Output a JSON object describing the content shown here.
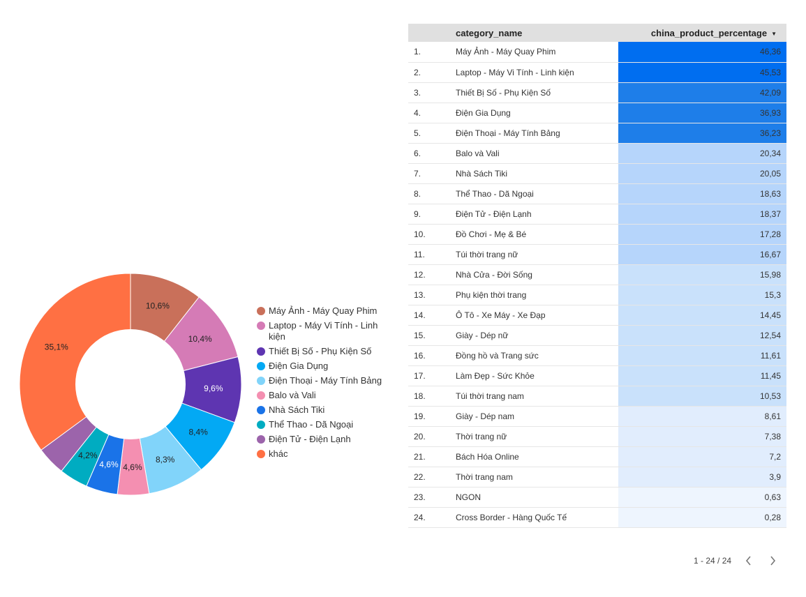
{
  "chart_data": [
    {
      "type": "pie",
      "donut": true,
      "legend_position": "right",
      "slices": [
        {
          "name": "Máy Ảnh - Máy Quay Phim",
          "value": 10.6,
          "label": "10,6%",
          "color": "#c9705a"
        },
        {
          "name": "Laptop - Máy Vi Tính - Linh kiện",
          "value": 10.4,
          "label": "10,4%",
          "color": "#d57bb6"
        },
        {
          "name": "Thiết Bị Số - Phụ Kiện Số",
          "value": 9.6,
          "label": "9,6%",
          "color": "#5e35b1"
        },
        {
          "name": "Điện Gia Dụng",
          "value": 8.4,
          "label": "8,4%",
          "color": "#03a9f4"
        },
        {
          "name": "Điện Thoại - Máy Tính Bảng",
          "value": 8.3,
          "label": "8,3%",
          "color": "#81d4fa"
        },
        {
          "name": "Balo và Vali",
          "value": 4.6,
          "label": "4,6%",
          "color": "#f48fb1"
        },
        {
          "name": "Nhà Sách Tiki",
          "value": 4.6,
          "label": "4,6%",
          "color": "#1a73e8"
        },
        {
          "name": "Thể Thao - Dã Ngoại",
          "value": 4.2,
          "label": "4,2%",
          "color": "#00acc1"
        },
        {
          "name": "Điện Tử - Điện Lạnh",
          "value": 4.2,
          "label": "",
          "color": "#9c64ab"
        },
        {
          "name": "khác",
          "value": 35.1,
          "label": "35,1%",
          "color": "#ff7043"
        }
      ]
    },
    {
      "type": "table",
      "columns": [
        "category_name",
        "china_product_percentage"
      ],
      "sort_column": "china_product_percentage",
      "sort_direction": "descending",
      "rows": [
        {
          "index": "1.",
          "name": "Máy Ảnh - Máy Quay Phim",
          "value": 46.36,
          "display": "46,36"
        },
        {
          "index": "2.",
          "name": "Laptop - Máy Vi Tính - Linh kiện",
          "value": 45.53,
          "display": "45,53"
        },
        {
          "index": "3.",
          "name": "Thiết Bị Số - Phụ Kiện Số",
          "value": 42.09,
          "display": "42,09"
        },
        {
          "index": "4.",
          "name": "Điện Gia Dụng",
          "value": 36.93,
          "display": "36,93"
        },
        {
          "index": "5.",
          "name": "Điện Thoại - Máy Tính Bảng",
          "value": 36.23,
          "display": "36,23"
        },
        {
          "index": "6.",
          "name": "Balo và Vali",
          "value": 20.34,
          "display": "20,34"
        },
        {
          "index": "7.",
          "name": "Nhà Sách Tiki",
          "value": 20.05,
          "display": "20,05"
        },
        {
          "index": "8.",
          "name": "Thể Thao - Dã Ngoại",
          "value": 18.63,
          "display": "18,63"
        },
        {
          "index": "9.",
          "name": "Điện Tử - Điện Lạnh",
          "value": 18.37,
          "display": "18,37"
        },
        {
          "index": "10.",
          "name": "Đồ Chơi - Mẹ & Bé",
          "value": 17.28,
          "display": "17,28"
        },
        {
          "index": "11.",
          "name": "Túi thời trang nữ",
          "value": 16.67,
          "display": "16,67"
        },
        {
          "index": "12.",
          "name": "Nhà Cửa - Đời Sống",
          "value": 15.98,
          "display": "15,98"
        },
        {
          "index": "13.",
          "name": "Phụ kiện thời trang",
          "value": 15.3,
          "display": "15,3"
        },
        {
          "index": "14.",
          "name": "Ô Tô - Xe Máy - Xe Đạp",
          "value": 14.45,
          "display": "14,45"
        },
        {
          "index": "15.",
          "name": "Giày - Dép nữ",
          "value": 12.54,
          "display": "12,54"
        },
        {
          "index": "16.",
          "name": "Đồng hồ và Trang sức",
          "value": 11.61,
          "display": "11,61"
        },
        {
          "index": "17.",
          "name": "Làm Đẹp - Sức Khỏe",
          "value": 11.45,
          "display": "11,45"
        },
        {
          "index": "18.",
          "name": "Túi thời trang nam",
          "value": 10.53,
          "display": "10,53"
        },
        {
          "index": "19.",
          "name": "Giày - Dép nam",
          "value": 8.61,
          "display": "8,61"
        },
        {
          "index": "20.",
          "name": "Thời trang nữ",
          "value": 7.38,
          "display": "7,38"
        },
        {
          "index": "21.",
          "name": "Bách Hóa Online",
          "value": 7.2,
          "display": "7,2"
        },
        {
          "index": "22.",
          "name": "Thời trang nam",
          "value": 3.9,
          "display": "3,9"
        },
        {
          "index": "23.",
          "name": "NGON",
          "value": 0.63,
          "display": "0,63"
        },
        {
          "index": "24.",
          "name": "Cross Border - Hàng Quốc Tế",
          "value": 0.28,
          "display": "0,28"
        }
      ]
    }
  ],
  "table": {
    "header_name": "category_name",
    "header_value": "china_product_percentage",
    "sort_icon": "sort-descending-icon",
    "heat_colors": [
      "#eef5fe",
      "#e1edfd",
      "#c9e1fb",
      "#b6d5fb",
      "#8dbff8",
      "#4293ee",
      "#1e7ee9",
      "#006ef0"
    ]
  },
  "pager": {
    "range_text": "1 - 24 / 24",
    "prev_icon": "chevron-left-icon",
    "next_icon": "chevron-right-icon"
  }
}
